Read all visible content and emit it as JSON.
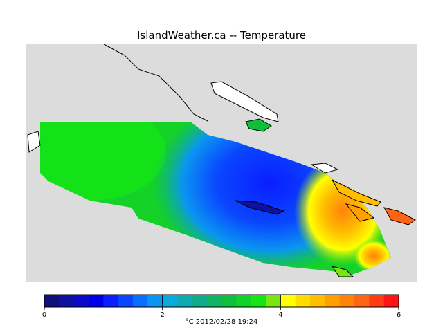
{
  "title": "IslandWeather.ca -- Temperature",
  "colorbar": {
    "lim": [
      0,
      6
    ],
    "ticks": [
      0,
      2,
      4,
      6
    ],
    "colors": [
      "#10107a",
      "#1010a0",
      "#0a0ac8",
      "#0000e6",
      "#0a1eff",
      "#0a46ff",
      "#0a6eff",
      "#0a96f0",
      "#0aaadc",
      "#10aab4",
      "#10aa8c",
      "#10b464",
      "#10be3c",
      "#10d228",
      "#14e614",
      "#78e614",
      "#ffff00",
      "#ffdc00",
      "#ffbe00",
      "#ffa000",
      "#ff820a",
      "#ff6414",
      "#ff3c14",
      "#ff1414"
    ],
    "label": "°C  2012/02/28 19:24"
  }
}
